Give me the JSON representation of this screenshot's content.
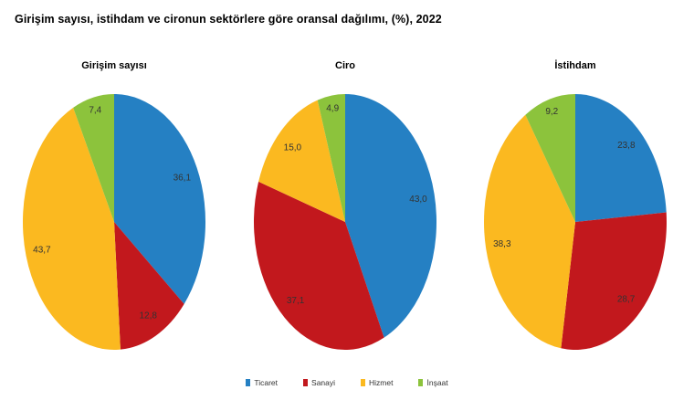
{
  "title": "Girişim sayısı, istihdam ve cironun sektörlere göre oransal dağılımı, (%), 2022",
  "legend": [
    {
      "label": "Ticaret",
      "color": "#2580C3"
    },
    {
      "label": "Sanayi",
      "color": "#C2181D"
    },
    {
      "label": "Hizmet",
      "color": "#FBB920"
    },
    {
      "label": "İnşaat",
      "color": "#8CC33C"
    }
  ],
  "chart_data": [
    {
      "type": "pie",
      "title": "Girişim sayısı",
      "categories": [
        "Ticaret",
        "Sanayi",
        "Hizmet",
        "İnşaat"
      ],
      "values": [
        36.1,
        12.8,
        43.7,
        7.4
      ],
      "display_values": [
        "36,1",
        "12,8",
        "43,7",
        "7,4"
      ],
      "unit": "%",
      "legend_position": "bottom",
      "start_angle_deg": 0,
      "direction": "clockwise"
    },
    {
      "type": "pie",
      "title": "Ciro",
      "categories": [
        "Ticaret",
        "Sanayi",
        "Hizmet",
        "İnşaat"
      ],
      "values": [
        43.0,
        37.1,
        15.0,
        4.9
      ],
      "display_values": [
        "43,0",
        "37,1",
        "15,0",
        "4,9"
      ],
      "unit": "%",
      "legend_position": "bottom",
      "start_angle_deg": 0,
      "direction": "clockwise"
    },
    {
      "type": "pie",
      "title": "İstihdam",
      "categories": [
        "Ticaret",
        "Sanayi",
        "Hizmet",
        "İnşaat"
      ],
      "values": [
        23.8,
        28.7,
        38.3,
        9.2
      ],
      "display_values": [
        "23,8",
        "28,7",
        "38,3",
        "9,2"
      ],
      "unit": "%",
      "legend_position": "bottom",
      "start_angle_deg": 0,
      "direction": "clockwise"
    }
  ]
}
